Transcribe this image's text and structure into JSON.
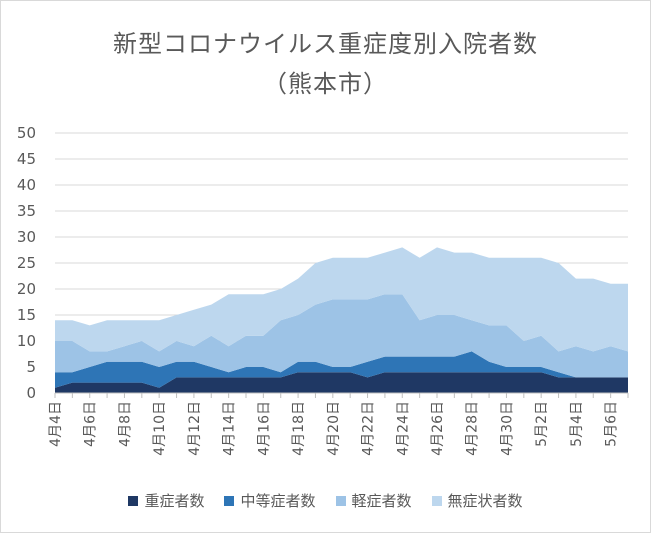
{
  "chart_data": {
    "type": "area",
    "stacked": true,
    "title": "新型コロナウイルス重症度別入院者数",
    "subtitle": "（熊本市）",
    "ylim": [
      0,
      50
    ],
    "yticks": [
      0,
      5,
      10,
      15,
      20,
      25,
      30,
      35,
      40,
      45,
      50
    ],
    "grid": true,
    "legend_position": "bottom",
    "categories": [
      "4月4日",
      "4月5日",
      "4月6日",
      "4月7日",
      "4月8日",
      "4月9日",
      "4月10日",
      "4月11日",
      "4月12日",
      "4月13日",
      "4月14日",
      "4月15日",
      "4月16日",
      "4月17日",
      "4月18日",
      "4月19日",
      "4月20日",
      "4月21日",
      "4月22日",
      "4月23日",
      "4月24日",
      "4月25日",
      "4月26日",
      "4月27日",
      "4月28日",
      "4月29日",
      "4月30日",
      "5月1日",
      "5月2日",
      "5月3日",
      "5月4日",
      "5月5日",
      "5月6日",
      "5月7日"
    ],
    "tick_labels": [
      "4月4日",
      "4月6日",
      "4月8日",
      "4月10日",
      "4月12日",
      "4月14日",
      "4月16日",
      "4月18日",
      "4月20日",
      "4月22日",
      "4月24日",
      "4月26日",
      "4月28日",
      "4月30日",
      "5月2日",
      "5月4日",
      "5月6日"
    ],
    "series": [
      {
        "name": "重症者数",
        "color": "#1f3864",
        "values": [
          1,
          2,
          2,
          2,
          2,
          2,
          1,
          3,
          3,
          3,
          3,
          3,
          3,
          3,
          4,
          4,
          4,
          4,
          3,
          4,
          4,
          4,
          4,
          4,
          4,
          4,
          4,
          4,
          4,
          3,
          3,
          3,
          3,
          3
        ]
      },
      {
        "name": "中等症者数",
        "color": "#2e75b6",
        "values": [
          3,
          2,
          3,
          4,
          4,
          4,
          4,
          3,
          3,
          2,
          1,
          2,
          2,
          1,
          2,
          2,
          1,
          1,
          3,
          3,
          3,
          3,
          3,
          3,
          4,
          2,
          1,
          1,
          1,
          1,
          0,
          0,
          0,
          0
        ]
      },
      {
        "name": "軽症者数",
        "color": "#9dc3e6",
        "values": [
          6,
          6,
          3,
          2,
          3,
          4,
          3,
          4,
          3,
          6,
          5,
          6,
          6,
          10,
          9,
          11,
          13,
          13,
          12,
          12,
          12,
          7,
          8,
          8,
          6,
          7,
          8,
          5,
          6,
          4,
          6,
          5,
          6,
          5
        ]
      },
      {
        "name": "無症状者数",
        "color": "#bdd7ee",
        "values": [
          4,
          4,
          5,
          6,
          5,
          4,
          6,
          5,
          7,
          6,
          10,
          8,
          8,
          6,
          7,
          8,
          8,
          8,
          8,
          8,
          9,
          12,
          13,
          12,
          13,
          13,
          13,
          16,
          15,
          17,
          13,
          14,
          12,
          13
        ]
      }
    ]
  }
}
